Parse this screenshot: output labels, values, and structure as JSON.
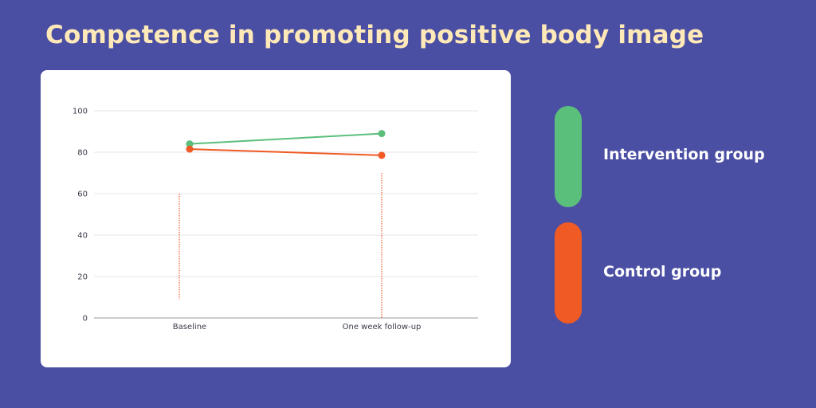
{
  "title": "Competence in promoting positive body image",
  "colors": {
    "background": "#4a4fa3",
    "title": "#ffe9b8",
    "intervention": "#5bbf7c",
    "control": "#f05a24",
    "card": "#ffffff"
  },
  "legend": [
    {
      "label": "Intervention group",
      "color": "#5bbf7c"
    },
    {
      "label": "Control group",
      "color": "#f05a24"
    }
  ],
  "chart_data": {
    "type": "line",
    "categories": [
      "Baseline",
      "One week follow-up"
    ],
    "series": [
      {
        "name": "Intervention group",
        "color": "#5bbf7c",
        "values": [
          84,
          89
        ]
      },
      {
        "name": "Control group",
        "color": "#f05a24",
        "values": [
          81.5,
          78.5
        ]
      }
    ],
    "error_bars": [
      {
        "category": "Baseline",
        "low": 9,
        "high": 60,
        "color": "#f05a24"
      },
      {
        "category": "One week follow-up",
        "low": 0,
        "high": 70,
        "color": "#f05a24"
      }
    ],
    "yticks": [
      0,
      20,
      40,
      60,
      80,
      100
    ],
    "ylim": [
      0,
      100
    ],
    "grid": true,
    "legend_position": "right"
  }
}
